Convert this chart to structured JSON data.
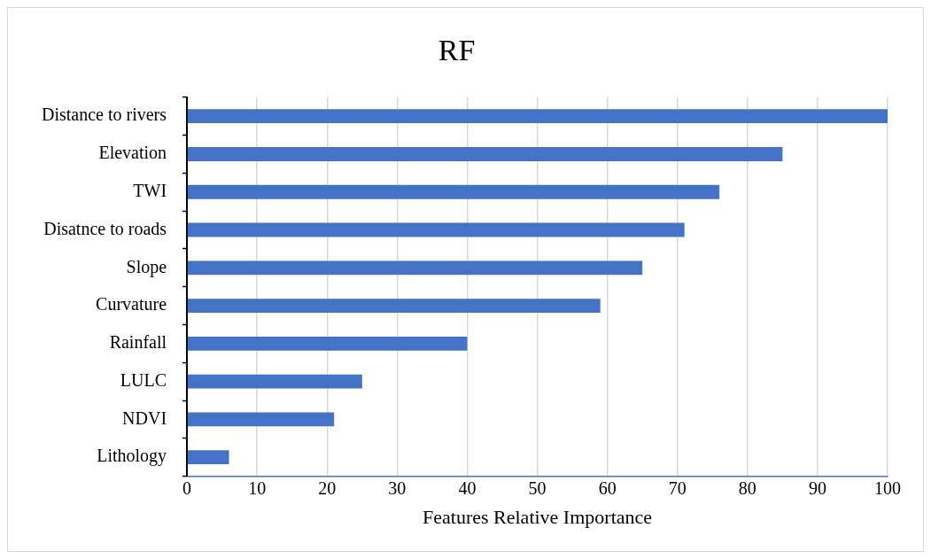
{
  "chart_data": {
    "type": "bar",
    "orientation": "horizontal",
    "title": "RF",
    "xlabel": "Features Relative Importance",
    "categories": [
      "Distance to rivers",
      "Elevation",
      "TWI",
      "Disatnce to roads",
      "Slope",
      "Curvature",
      "Rainfall",
      "LULC",
      "NDVI",
      "Lithology"
    ],
    "values": [
      100,
      85,
      76,
      71,
      65,
      59,
      40,
      25,
      21,
      6
    ],
    "color": "#4472c4",
    "xlim": [
      0,
      100
    ],
    "xticks": [
      0,
      10,
      20,
      30,
      40,
      50,
      60,
      70,
      80,
      90,
      100
    ],
    "grid": "x",
    "legend": false
  }
}
